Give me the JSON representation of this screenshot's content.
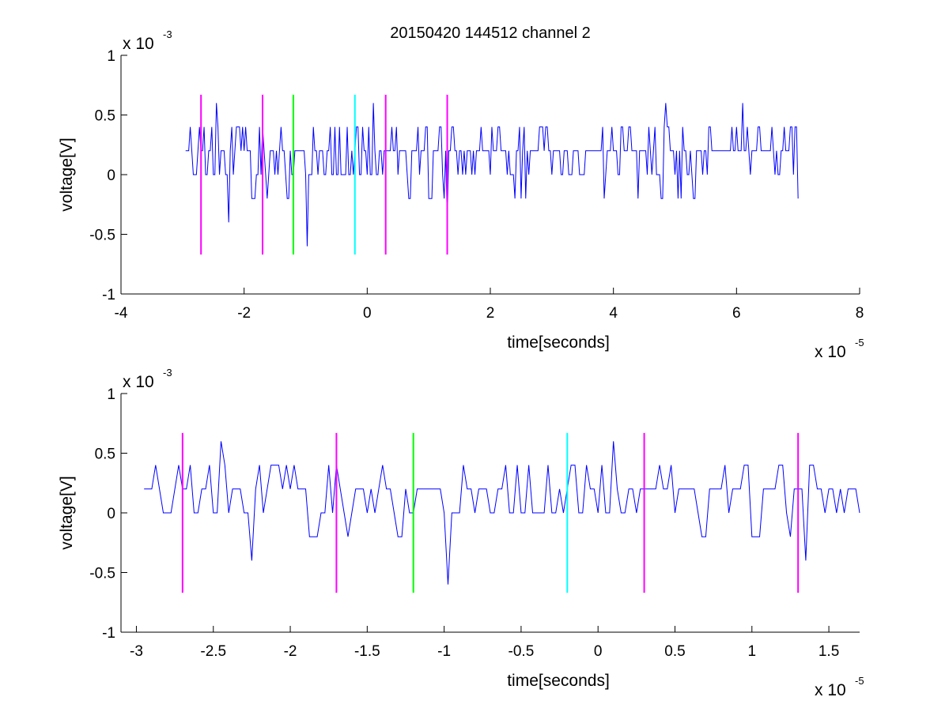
{
  "figure": {
    "title": "20150420 144512 channel 2"
  },
  "chart_data": [
    {
      "type": "line",
      "xlabel": "time[seconds]",
      "ylabel": "voltage[V]",
      "x_multiplier_text": "x 10",
      "x_multiplier_exp": "-5",
      "y_multiplier_text": "x 10",
      "y_multiplier_exp": "-3",
      "xlim": [
        -4,
        8
      ],
      "ylim": [
        -1,
        1
      ],
      "x_ticks": [
        -4,
        -2,
        0,
        2,
        4,
        6,
        8
      ],
      "x_tick_labels": [
        "-4",
        "-2",
        "0",
        "2",
        "4",
        "6",
        "8"
      ],
      "y_ticks": [
        -1,
        -0.5,
        0,
        0.5,
        1
      ],
      "y_tick_labels": [
        "-1",
        "-0.5",
        "0",
        "0.5",
        "1"
      ],
      "grid": false,
      "signal": {
        "color": "#0000ff",
        "x_start": -2.95,
        "x_end": 7.0,
        "quantization": 0.2,
        "seed": 20150420,
        "spikes": [
          {
            "x": -2.45,
            "y": 0.6
          },
          {
            "x": -2.25,
            "y": -0.4
          },
          {
            "x": -0.98,
            "y": -0.6
          },
          {
            "x": 0.1,
            "y": 0.6
          },
          {
            "x": 1.3,
            "y": -0.4
          },
          {
            "x": 4.85,
            "y": 0.6
          },
          {
            "x": 6.1,
            "y": 0.6
          }
        ]
      },
      "markers": [
        {
          "x": -2.7,
          "color": "#ff00ff"
        },
        {
          "x": -1.7,
          "color": "#ff00ff"
        },
        {
          "x": -1.2,
          "color": "#00ff00"
        },
        {
          "x": -0.2,
          "color": "#00ffff"
        },
        {
          "x": 0.3,
          "color": "#ff00ff"
        },
        {
          "x": 1.3,
          "color": "#ff00ff"
        }
      ],
      "marker_range": [
        -0.67,
        0.67
      ]
    },
    {
      "type": "line",
      "xlabel": "time[seconds]",
      "ylabel": "voltage[V]",
      "x_multiplier_text": "x 10",
      "x_multiplier_exp": "-5",
      "y_multiplier_text": "x 10",
      "y_multiplier_exp": "-3",
      "xlim": [
        -3.1,
        1.7
      ],
      "ylim": [
        -1,
        1
      ],
      "x_ticks": [
        -3,
        -2.5,
        -2,
        -1.5,
        -1,
        -0.5,
        0,
        0.5,
        1,
        1.5
      ],
      "x_tick_labels": [
        "-3",
        "-2.5",
        "-2",
        "-1.5",
        "-1",
        "-0.5",
        "0",
        "0.5",
        "1",
        "1.5"
      ],
      "y_ticks": [
        -1,
        -0.5,
        0,
        0.5,
        1
      ],
      "y_tick_labels": [
        "-1",
        "-0.5",
        "0",
        "0.5",
        "1"
      ],
      "grid": false,
      "signal": {
        "color": "#0000ff",
        "x_start": -2.95,
        "x_end": 1.7,
        "quantization": 0.2,
        "seed": 20150420,
        "spikes": [
          {
            "x": -2.45,
            "y": 0.6
          },
          {
            "x": -2.25,
            "y": -0.4
          },
          {
            "x": -0.98,
            "y": -0.6
          },
          {
            "x": 0.1,
            "y": 0.6
          },
          {
            "x": 1.35,
            "y": -0.4
          }
        ]
      },
      "markers": [
        {
          "x": -2.7,
          "color": "#ff00ff"
        },
        {
          "x": -1.7,
          "color": "#ff00ff"
        },
        {
          "x": -1.2,
          "color": "#00ff00"
        },
        {
          "x": -0.2,
          "color": "#00ffff"
        },
        {
          "x": 0.3,
          "color": "#ff00ff"
        },
        {
          "x": 1.3,
          "color": "#ff00ff"
        }
      ],
      "marker_range": [
        -0.67,
        0.67
      ]
    }
  ]
}
